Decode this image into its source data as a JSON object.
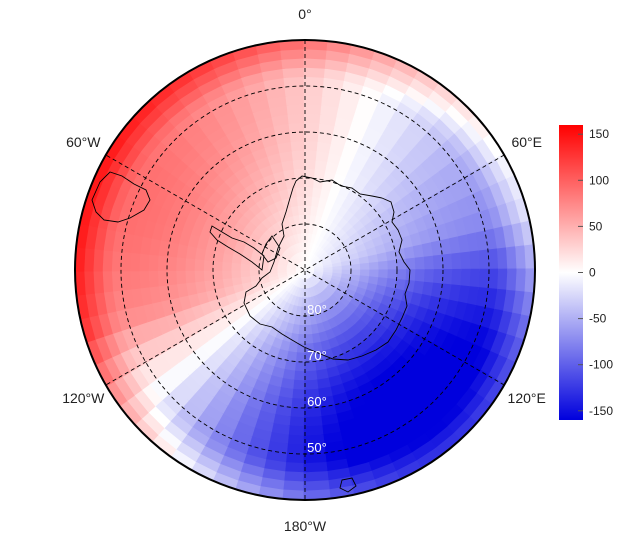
{
  "map": {
    "projection": "south-polar-stereographic",
    "longitude_labels": [
      {
        "text": "0°",
        "lon": 0
      },
      {
        "text": "60°E",
        "lon": 60
      },
      {
        "text": "120°E",
        "lon": 120
      },
      {
        "text": "180°W",
        "lon": 180
      },
      {
        "text": "120°W",
        "lon": -120
      },
      {
        "text": "60°W",
        "lon": -60
      }
    ],
    "latitude_labels": [
      {
        "text": "80°",
        "lat": -80
      },
      {
        "text": "70°",
        "lat": -70
      },
      {
        "text": "60°",
        "lat": -60
      },
      {
        "text": "50°",
        "lat": -50
      }
    ],
    "outer_latitude": -40,
    "field_pattern": "wave-1: positive anomaly centred near 60°W–90°W, negative anomaly centred near 170°E–180°",
    "colors": {
      "low": "#0000dd",
      "mid": "#ffffff",
      "high": "#ff0000"
    }
  },
  "colorbar": {
    "min": -160,
    "max": 160,
    "ticks": [
      "150",
      "100",
      "50",
      "0",
      "-50",
      "-100",
      "-150"
    ],
    "tick_values": [
      150,
      100,
      50,
      0,
      -50,
      -100,
      -150
    ]
  }
}
